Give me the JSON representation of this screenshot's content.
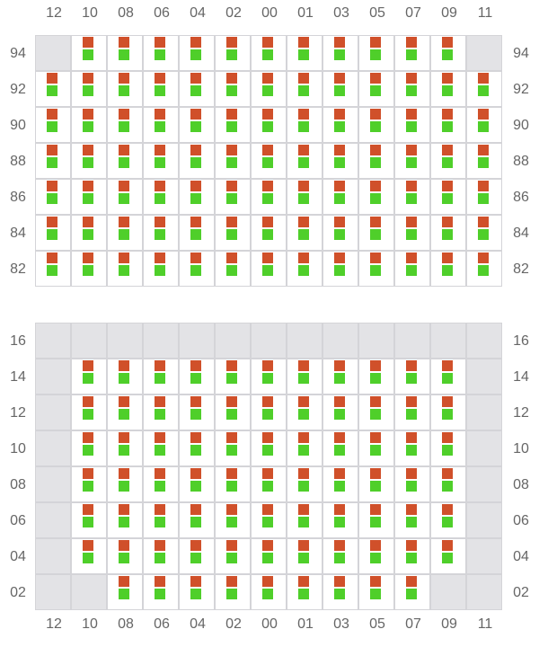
{
  "columns": [
    "12",
    "10",
    "08",
    "06",
    "04",
    "02",
    "00",
    "01",
    "03",
    "05",
    "07",
    "09",
    "11"
  ],
  "colors": {
    "top_marker": "#d0502a",
    "bottom_marker": "#4fcf2a",
    "empty_cell": "#e3e3e6",
    "grid_line": "#d4d4d8"
  },
  "grids": [
    {
      "rows": [
        {
          "label": "94",
          "empty": [
            "12",
            "11"
          ]
        },
        {
          "label": "92",
          "empty": []
        },
        {
          "label": "90",
          "empty": []
        },
        {
          "label": "88",
          "empty": []
        },
        {
          "label": "86",
          "empty": []
        },
        {
          "label": "84",
          "empty": []
        },
        {
          "label": "82",
          "empty": []
        }
      ]
    },
    {
      "rows": [
        {
          "label": "16",
          "empty": [
            "12",
            "10",
            "08",
            "06",
            "04",
            "02",
            "00",
            "01",
            "03",
            "05",
            "07",
            "09",
            "11"
          ]
        },
        {
          "label": "14",
          "empty": [
            "12",
            "11"
          ]
        },
        {
          "label": "12",
          "empty": [
            "12",
            "11"
          ]
        },
        {
          "label": "10",
          "empty": [
            "12",
            "11"
          ]
        },
        {
          "label": "08",
          "empty": [
            "12",
            "11"
          ]
        },
        {
          "label": "06",
          "empty": [
            "12",
            "11"
          ]
        },
        {
          "label": "04",
          "empty": [
            "12",
            "11"
          ]
        },
        {
          "label": "02",
          "empty": [
            "12",
            "10",
            "09",
            "11"
          ]
        }
      ]
    }
  ]
}
